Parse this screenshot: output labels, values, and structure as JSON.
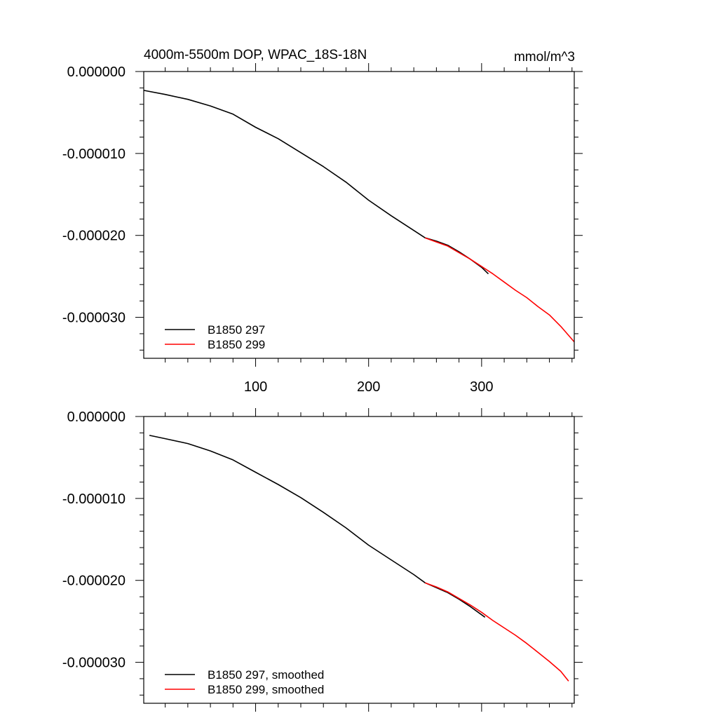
{
  "chart_data": [
    {
      "type": "line",
      "title": "4000m-5500m DOP, WPAC_18S-18N",
      "units": "mmol/m^3",
      "xlim": [
        1,
        382
      ],
      "ylim": [
        -3.5e-05,
        0.0
      ],
      "y_ticks": [
        {
          "value": 0.0,
          "label": "0.000000"
        },
        {
          "value": -1e-05,
          "label": "-0.000010"
        },
        {
          "value": -2e-05,
          "label": "-0.000020"
        },
        {
          "value": -3e-05,
          "label": "-0.000030"
        }
      ],
      "x_ticks": [
        {
          "value": 100,
          "label": "100"
        },
        {
          "value": 200,
          "label": "200"
        },
        {
          "value": 300,
          "label": "300"
        }
      ],
      "legend_position": "bottom-left",
      "series": [
        {
          "name": "B1850 297",
          "color": "#000000",
          "x": [
            1,
            20,
            40,
            60,
            80,
            100,
            120,
            140,
            160,
            180,
            200,
            220,
            240,
            250,
            260,
            270,
            280,
            290,
            300,
            306
          ],
          "y": [
            -2.3e-06,
            -2.8e-06,
            -3.4e-06,
            -4.2e-06,
            -5.2e-06,
            -6.8e-06,
            -8.2e-06,
            -9.9e-06,
            -1.16e-05,
            -1.35e-05,
            -1.57e-05,
            -1.76e-05,
            -1.94e-05,
            -2.03e-05,
            -2.07e-05,
            -2.12e-05,
            -2.2e-05,
            -2.29e-05,
            -2.39e-05,
            -2.47e-05
          ]
        },
        {
          "name": "B1850 299",
          "color": "#ff0000",
          "x": [
            250,
            260,
            270,
            280,
            290,
            300,
            310,
            320,
            330,
            340,
            350,
            360,
            370,
            382
          ],
          "y": [
            -2.03e-05,
            -2.08e-05,
            -2.13e-05,
            -2.21e-05,
            -2.29e-05,
            -2.38e-05,
            -2.47e-05,
            -2.57e-05,
            -2.67e-05,
            -2.76e-05,
            -2.87e-05,
            -2.97e-05,
            -3.11e-05,
            -3.3e-05
          ]
        }
      ]
    },
    {
      "type": "line",
      "xlim": [
        1,
        382
      ],
      "ylim": [
        -3.5e-05,
        0.0
      ],
      "y_ticks": [
        {
          "value": 0.0,
          "label": "0.000000"
        },
        {
          "value": -1e-05,
          "label": "-0.000010"
        },
        {
          "value": -2e-05,
          "label": "-0.000020"
        },
        {
          "value": -3e-05,
          "label": "-0.000030"
        }
      ],
      "x_tick_values": [
        100,
        200,
        300
      ],
      "legend_position": "bottom-left",
      "series": [
        {
          "name": "B1850 297, smoothed",
          "color": "#000000",
          "x": [
            6,
            20,
            40,
            60,
            80,
            100,
            120,
            140,
            160,
            180,
            200,
            220,
            240,
            250,
            260,
            270,
            280,
            290,
            300,
            303
          ],
          "y": [
            -2.3e-06,
            -2.7e-06,
            -3.3e-06,
            -4.2e-06,
            -5.3e-06,
            -6.8e-06,
            -8.3e-06,
            -9.9e-06,
            -1.17e-05,
            -1.36e-05,
            -1.57e-05,
            -1.75e-05,
            -1.93e-05,
            -2.03e-05,
            -2.09e-05,
            -2.15e-05,
            -2.23e-05,
            -2.32e-05,
            -2.42e-05,
            -2.45e-05
          ]
        },
        {
          "name": "B1850 299, smoothed",
          "color": "#ff0000",
          "x": [
            250,
            260,
            270,
            280,
            290,
            300,
            310,
            320,
            330,
            340,
            350,
            360,
            370,
            377
          ],
          "y": [
            -2.03e-05,
            -2.08e-05,
            -2.14e-05,
            -2.22e-05,
            -2.3e-05,
            -2.39e-05,
            -2.49e-05,
            -2.58e-05,
            -2.67e-05,
            -2.77e-05,
            -2.88e-05,
            -2.99e-05,
            -3.11e-05,
            -3.23e-05
          ]
        }
      ]
    }
  ]
}
